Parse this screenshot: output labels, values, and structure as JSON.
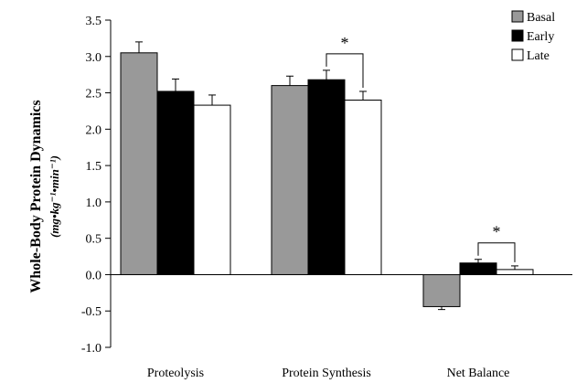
{
  "chart_data": {
    "type": "bar",
    "categories": [
      "Proteolysis",
      "Protein Synthesis",
      "Net Balance"
    ],
    "series": [
      {
        "name": "Basal",
        "color": "#999999",
        "values": [
          3.05,
          2.6,
          -0.44
        ],
        "errors": [
          0.15,
          0.13,
          0.04
        ]
      },
      {
        "name": "Early",
        "color": "#000000",
        "values": [
          2.52,
          2.68,
          0.16
        ],
        "errors": [
          0.17,
          0.13,
          0.05
        ]
      },
      {
        "name": "Late",
        "color": "#ffffff",
        "values": [
          2.33,
          2.4,
          0.07
        ],
        "errors": [
          0.14,
          0.12,
          0.05
        ]
      }
    ],
    "ylabel": "Whole-Body Protein Dynamics",
    "ylabel_units": "(mg•kg⁻¹•min⁻¹)",
    "ylim": [
      -1.0,
      3.5
    ],
    "yticks": [
      -1.0,
      -0.5,
      0.0,
      0.5,
      1.0,
      1.5,
      2.0,
      2.5,
      3.0,
      3.5
    ],
    "ytick_labels": [
      "-1.0",
      "-0.5",
      "0.0",
      "0.5",
      "1.0",
      "1.5",
      "2.0",
      "2.5",
      "3.0",
      "3.5"
    ],
    "grid": false,
    "legend_position": "top-right",
    "annotations": [
      {
        "text": "*",
        "category": "Protein Synthesis",
        "between": [
          "Early",
          "Late"
        ]
      },
      {
        "text": "*",
        "category": "Net Balance",
        "between": [
          "Early",
          "Late"
        ]
      }
    ]
  }
}
